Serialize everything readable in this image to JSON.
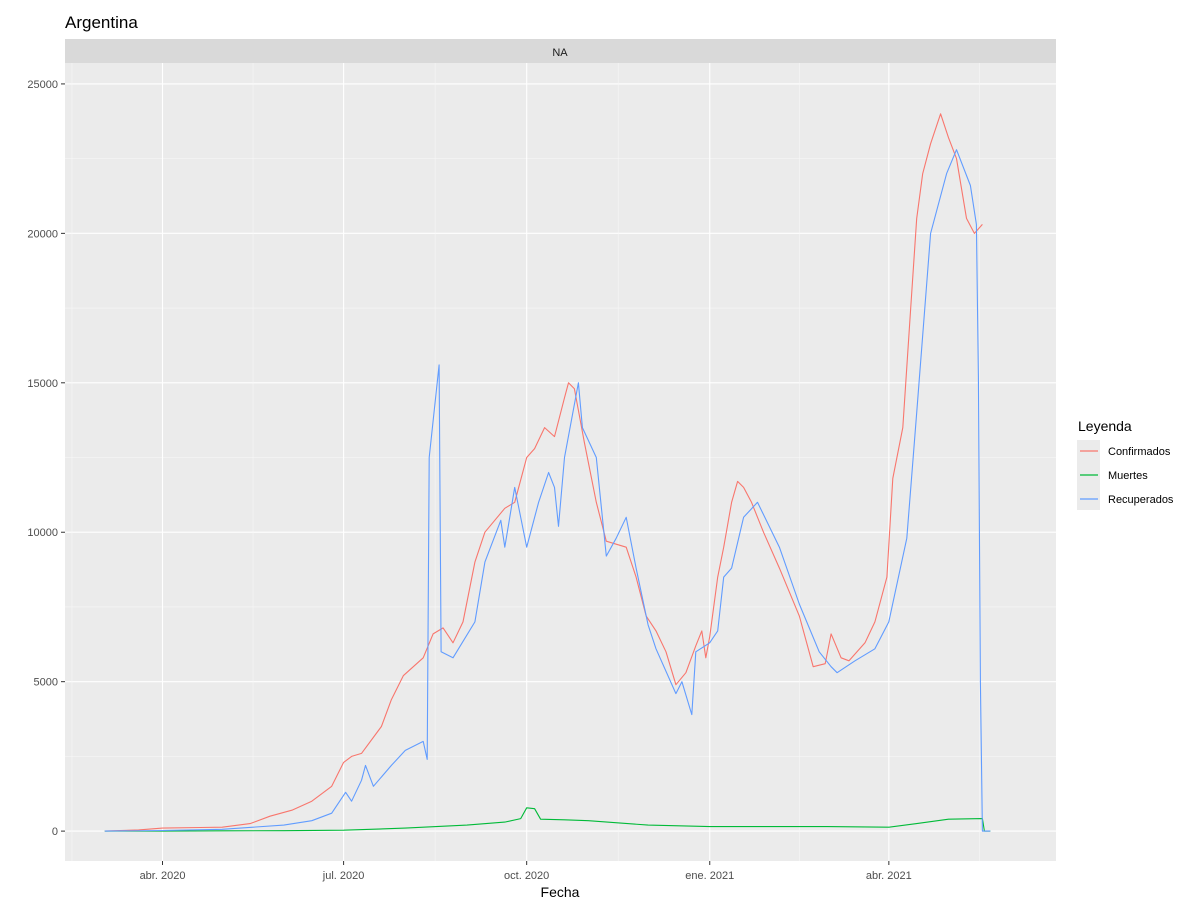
{
  "chart_data": {
    "type": "line",
    "title": "Argentina",
    "facet_label": "NA",
    "xlabel": "Fecha",
    "ylabel": "",
    "ylim": [
      -1000,
      25700
    ],
    "yticks": [
      0,
      5000,
      10000,
      15000,
      20000,
      25000
    ],
    "xlim": [
      "2020-02-12",
      "2021-06-24"
    ],
    "xticks": [
      {
        "date": "2020-04-01",
        "label": "abr. 2020"
      },
      {
        "date": "2020-07-01",
        "label": "jul. 2020"
      },
      {
        "date": "2020-10-01",
        "label": "oct. 2020"
      },
      {
        "date": "2021-01-01",
        "label": "ene. 2021"
      },
      {
        "date": "2021-04-01",
        "label": "abr. 2021"
      }
    ],
    "grid": true,
    "legend": {
      "title": "Leyenda",
      "position": "right"
    },
    "series": [
      {
        "name": "Confirmados",
        "color": "#F8766D",
        "points": [
          [
            "2020-03-03",
            0
          ],
          [
            "2020-03-20",
            40
          ],
          [
            "2020-04-01",
            100
          ],
          [
            "2020-04-20",
            120
          ],
          [
            "2020-05-01",
            130
          ],
          [
            "2020-05-15",
            250
          ],
          [
            "2020-05-25",
            500
          ],
          [
            "2020-06-05",
            700
          ],
          [
            "2020-06-15",
            1000
          ],
          [
            "2020-06-25",
            1500
          ],
          [
            "2020-07-01",
            2300
          ],
          [
            "2020-07-05",
            2500
          ],
          [
            "2020-07-10",
            2600
          ],
          [
            "2020-07-20",
            3500
          ],
          [
            "2020-07-25",
            4400
          ],
          [
            "2020-07-31",
            5200
          ],
          [
            "2020-08-10",
            5800
          ],
          [
            "2020-08-15",
            6600
          ],
          [
            "2020-08-20",
            6800
          ],
          [
            "2020-08-25",
            6300
          ],
          [
            "2020-08-30",
            7000
          ],
          [
            "2020-09-05",
            9000
          ],
          [
            "2020-09-10",
            10000
          ],
          [
            "2020-09-20",
            10800
          ],
          [
            "2020-09-25",
            11000
          ],
          [
            "2020-10-01",
            12500
          ],
          [
            "2020-10-05",
            12800
          ],
          [
            "2020-10-10",
            13500
          ],
          [
            "2020-10-15",
            13200
          ],
          [
            "2020-10-20",
            14500
          ],
          [
            "2020-10-22",
            15000
          ],
          [
            "2020-10-25",
            14800
          ],
          [
            "2020-10-30",
            13000
          ],
          [
            "2020-11-05",
            11000
          ],
          [
            "2020-11-10",
            9700
          ],
          [
            "2020-11-15",
            9600
          ],
          [
            "2020-11-20",
            9500
          ],
          [
            "2020-11-25",
            8500
          ],
          [
            "2020-11-30",
            7200
          ],
          [
            "2020-12-05",
            6700
          ],
          [
            "2020-12-10",
            6000
          ],
          [
            "2020-12-15",
            4900
          ],
          [
            "2020-12-20",
            5300
          ],
          [
            "2020-12-25",
            6200
          ],
          [
            "2020-12-28",
            6700
          ],
          [
            "2020-12-30",
            5800
          ],
          [
            "2021-01-01",
            6500
          ],
          [
            "2021-01-05",
            8500
          ],
          [
            "2021-01-08",
            9500
          ],
          [
            "2021-01-12",
            11000
          ],
          [
            "2021-01-15",
            11700
          ],
          [
            "2021-01-18",
            11500
          ],
          [
            "2021-01-22",
            11000
          ],
          [
            "2021-01-28",
            10000
          ],
          [
            "2021-02-05",
            8800
          ],
          [
            "2021-02-15",
            7200
          ],
          [
            "2021-02-22",
            5500
          ],
          [
            "2021-02-28",
            5600
          ],
          [
            "2021-03-03",
            6600
          ],
          [
            "2021-03-08",
            5800
          ],
          [
            "2021-03-12",
            5700
          ],
          [
            "2021-03-20",
            6300
          ],
          [
            "2021-03-25",
            7000
          ],
          [
            "2021-03-31",
            8500
          ],
          [
            "2021-04-03",
            11800
          ],
          [
            "2021-04-08",
            13500
          ],
          [
            "2021-04-12",
            17500
          ],
          [
            "2021-04-15",
            20500
          ],
          [
            "2021-04-18",
            22000
          ],
          [
            "2021-04-22",
            23000
          ],
          [
            "2021-04-27",
            24000
          ],
          [
            "2021-05-01",
            23200
          ],
          [
            "2021-05-05",
            22500
          ],
          [
            "2021-05-10",
            20500
          ],
          [
            "2021-05-14",
            20000
          ],
          [
            "2021-05-18",
            20300
          ]
        ]
      },
      {
        "name": "Muertes",
        "color": "#00BA38",
        "points": [
          [
            "2020-03-03",
            0
          ],
          [
            "2020-04-01",
            0
          ],
          [
            "2020-05-01",
            10
          ],
          [
            "2020-06-01",
            15
          ],
          [
            "2020-07-01",
            30
          ],
          [
            "2020-08-01",
            100
          ],
          [
            "2020-09-01",
            200
          ],
          [
            "2020-09-20",
            300
          ],
          [
            "2020-09-28",
            420
          ],
          [
            "2020-10-01",
            780
          ],
          [
            "2020-10-05",
            750
          ],
          [
            "2020-10-08",
            400
          ],
          [
            "2020-10-20",
            380
          ],
          [
            "2020-11-01",
            350
          ],
          [
            "2020-12-01",
            200
          ],
          [
            "2021-01-01",
            150
          ],
          [
            "2021-02-01",
            150
          ],
          [
            "2021-03-01",
            150
          ],
          [
            "2021-04-01",
            130
          ],
          [
            "2021-04-15",
            250
          ],
          [
            "2021-05-01",
            400
          ],
          [
            "2021-05-18",
            420
          ],
          [
            "2021-05-19",
            0
          ],
          [
            "2021-05-22",
            0
          ]
        ]
      },
      {
        "name": "Recuperados",
        "color": "#619CFF",
        "points": [
          [
            "2020-03-03",
            0
          ],
          [
            "2020-04-01",
            20
          ],
          [
            "2020-05-01",
            60
          ],
          [
            "2020-06-01",
            200
          ],
          [
            "2020-06-15",
            350
          ],
          [
            "2020-06-25",
            600
          ],
          [
            "2020-07-02",
            1300
          ],
          [
            "2020-07-05",
            1000
          ],
          [
            "2020-07-10",
            1700
          ],
          [
            "2020-07-12",
            2200
          ],
          [
            "2020-07-16",
            1500
          ],
          [
            "2020-07-25",
            2200
          ],
          [
            "2020-08-01",
            2700
          ],
          [
            "2020-08-10",
            3000
          ],
          [
            "2020-08-12",
            2400
          ],
          [
            "2020-08-13",
            12500
          ],
          [
            "2020-08-18",
            15600
          ],
          [
            "2020-08-19",
            6000
          ],
          [
            "2020-08-25",
            5800
          ],
          [
            "2020-09-05",
            7000
          ],
          [
            "2020-09-10",
            9000
          ],
          [
            "2020-09-18",
            10400
          ],
          [
            "2020-09-20",
            9500
          ],
          [
            "2020-09-25",
            11500
          ],
          [
            "2020-10-01",
            9500
          ],
          [
            "2020-10-07",
            11000
          ],
          [
            "2020-10-12",
            12000
          ],
          [
            "2020-10-15",
            11500
          ],
          [
            "2020-10-17",
            10200
          ],
          [
            "2020-10-20",
            12500
          ],
          [
            "2020-10-27",
            15000
          ],
          [
            "2020-10-29",
            13500
          ],
          [
            "2020-11-05",
            12500
          ],
          [
            "2020-11-10",
            9200
          ],
          [
            "2020-11-15",
            9800
          ],
          [
            "2020-11-20",
            10500
          ],
          [
            "2020-11-25",
            8800
          ],
          [
            "2020-12-01",
            6900
          ],
          [
            "2020-12-05",
            6100
          ],
          [
            "2020-12-15",
            4600
          ],
          [
            "2020-12-18",
            5000
          ],
          [
            "2020-12-23",
            3900
          ],
          [
            "2020-12-25",
            6000
          ],
          [
            "2021-01-01",
            6300
          ],
          [
            "2021-01-05",
            6700
          ],
          [
            "2021-01-08",
            8500
          ],
          [
            "2021-01-12",
            8800
          ],
          [
            "2021-01-18",
            10500
          ],
          [
            "2021-01-25",
            11000
          ],
          [
            "2021-02-05",
            9500
          ],
          [
            "2021-02-15",
            7600
          ],
          [
            "2021-02-25",
            6000
          ],
          [
            "2021-03-03",
            5500
          ],
          [
            "2021-03-06",
            5300
          ],
          [
            "2021-03-15",
            5700
          ],
          [
            "2021-03-25",
            6100
          ],
          [
            "2021-04-01",
            7000
          ],
          [
            "2021-04-10",
            9800
          ],
          [
            "2021-04-15",
            14000
          ],
          [
            "2021-04-22",
            20000
          ],
          [
            "2021-04-30",
            22000
          ],
          [
            "2021-05-05",
            22800
          ],
          [
            "2021-05-12",
            21600
          ],
          [
            "2021-05-15",
            20300
          ],
          [
            "2021-05-16",
            15200
          ],
          [
            "2021-05-17",
            5000
          ],
          [
            "2021-05-18",
            0
          ],
          [
            "2021-05-22",
            0
          ]
        ]
      }
    ]
  }
}
